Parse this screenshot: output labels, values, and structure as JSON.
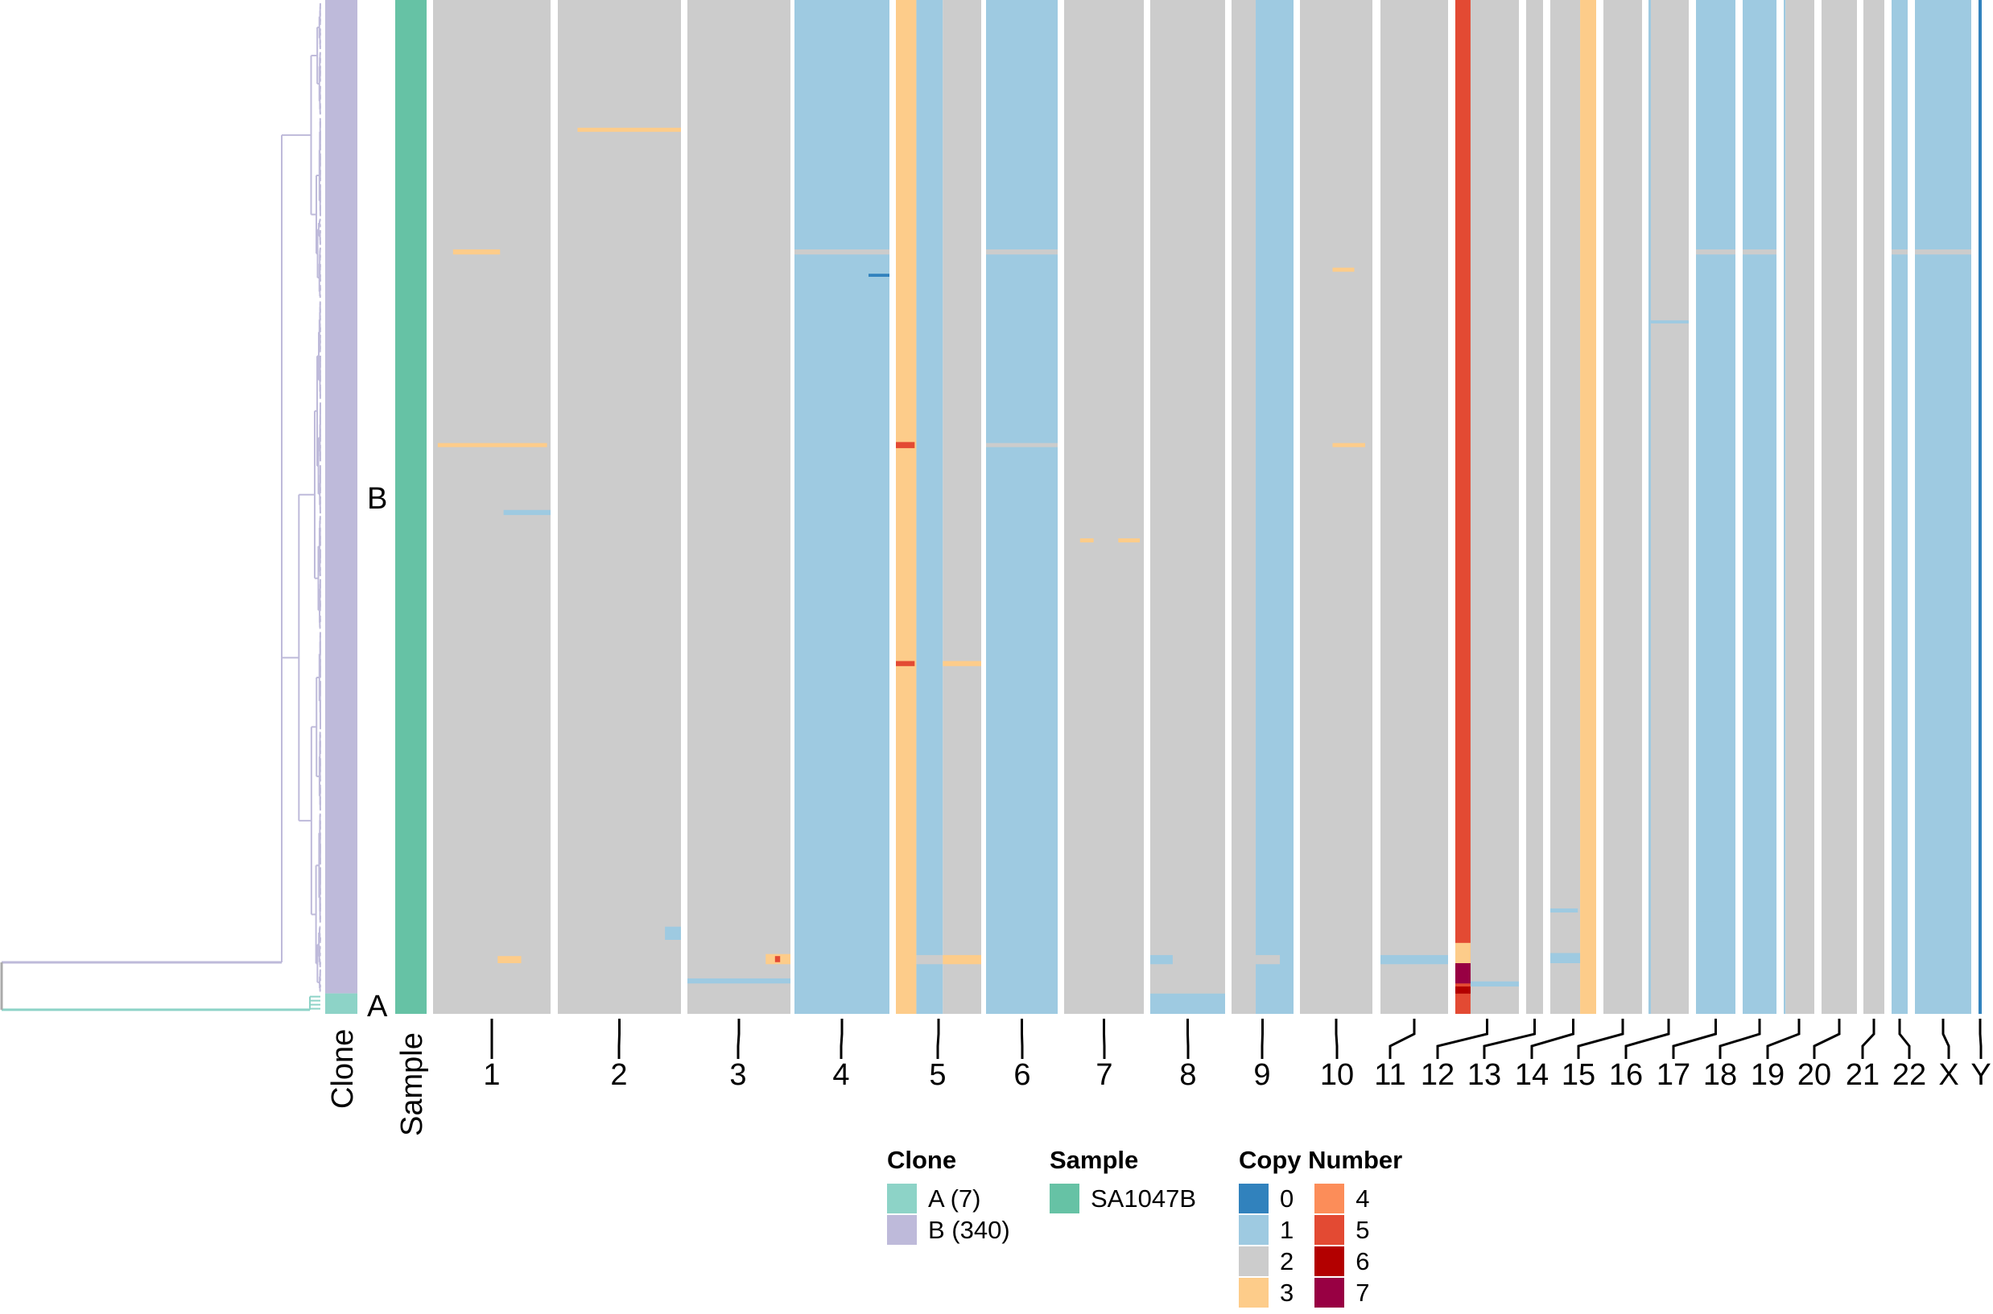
{
  "chart_data": {
    "type": "heatmap",
    "title": "",
    "row_annotations": {
      "clone_label": "Clone",
      "sample_label": "Sample"
    },
    "clones": [
      {
        "id": "A",
        "label": "A (7)",
        "cells": 7,
        "color": "#8dd3c7"
      },
      {
        "id": "B",
        "label": "B (340)",
        "cells": 340,
        "color": "#bebada"
      }
    ],
    "samples": [
      {
        "label": "SA1047B",
        "color": "#66c2a5"
      }
    ],
    "copy_number_legend_title": "Copy Number",
    "states": [
      {
        "label": "0",
        "color": "#3182bd"
      },
      {
        "label": "1",
        "color": "#9ecae1"
      },
      {
        "label": "2",
        "color": "#cccccc"
      },
      {
        "label": "3",
        "color": "#fdcc8a"
      },
      {
        "label": "4",
        "color": "#fc8d59"
      },
      {
        "label": "5",
        "color": "#e34a33"
      },
      {
        "label": "6",
        "color": "#b30000"
      },
      {
        "label": "7",
        "color": "#980043"
      }
    ],
    "chromosomes": [
      {
        "name": "1",
        "base": [
          [
            0,
            1,
            2
          ]
        ]
      },
      {
        "name": "2",
        "base": [
          [
            0,
            1,
            2
          ]
        ]
      },
      {
        "name": "3",
        "base": [
          [
            0,
            1,
            2
          ]
        ]
      },
      {
        "name": "4",
        "base": [
          [
            0,
            1,
            1
          ]
        ]
      },
      {
        "name": "5",
        "base": [
          [
            0,
            0.24,
            3
          ],
          [
            0.24,
            0.55,
            1
          ],
          [
            0.55,
            1,
            2
          ]
        ]
      },
      {
        "name": "6",
        "base": [
          [
            0,
            1,
            1
          ]
        ]
      },
      {
        "name": "7",
        "base": [
          [
            0,
            1,
            2
          ]
        ]
      },
      {
        "name": "8",
        "base": [
          [
            0,
            1,
            2
          ]
        ]
      },
      {
        "name": "9",
        "base": [
          [
            0,
            0.39,
            2
          ],
          [
            0.39,
            1,
            1
          ]
        ]
      },
      {
        "name": "10",
        "base": [
          [
            0,
            1,
            2
          ]
        ]
      },
      {
        "name": "11",
        "base": [
          [
            0,
            1,
            2
          ]
        ]
      },
      {
        "name": "12",
        "base": [
          [
            0,
            0.24,
            5
          ],
          [
            0.24,
            1,
            2
          ]
        ]
      },
      {
        "name": "13",
        "base": [
          [
            0,
            1,
            2
          ]
        ]
      },
      {
        "name": "14",
        "base": [
          [
            0,
            0.65,
            2
          ],
          [
            0.65,
            1,
            3
          ]
        ]
      },
      {
        "name": "15",
        "base": [
          [
            0,
            1,
            2
          ]
        ]
      },
      {
        "name": "16",
        "base": [
          [
            0,
            0.06,
            1
          ],
          [
            0.06,
            1,
            2
          ]
        ]
      },
      {
        "name": "17",
        "base": [
          [
            0,
            1,
            1
          ]
        ]
      },
      {
        "name": "18",
        "base": [
          [
            0,
            1,
            1
          ]
        ]
      },
      {
        "name": "19",
        "base": [
          [
            0,
            0.06,
            1
          ],
          [
            0.06,
            1,
            2
          ]
        ]
      },
      {
        "name": "20",
        "base": [
          [
            0,
            1,
            2
          ]
        ]
      },
      {
        "name": "21",
        "base": [
          [
            0,
            1,
            2
          ]
        ]
      },
      {
        "name": "22",
        "base": [
          [
            0,
            1,
            1
          ]
        ]
      },
      {
        "name": "X",
        "base": [
          [
            0,
            1,
            1
          ]
        ]
      },
      {
        "name": "Y",
        "base": [
          [
            0,
            1,
            0
          ]
        ]
      }
    ],
    "events": [
      {
        "chr": "2",
        "pos": [
          0.16,
          1
        ],
        "cells": [
          0.126,
          0.13
        ],
        "state": 3
      },
      {
        "chr": "1",
        "pos": [
          0.17,
          0.57
        ],
        "cells": [
          0.246,
          0.251
        ],
        "state": 3
      },
      {
        "chr": "4",
        "pos": [
          0,
          1
        ],
        "cells": [
          0.246,
          0.251
        ],
        "state": 2
      },
      {
        "chr": "6",
        "pos": [
          0,
          1
        ],
        "cells": [
          0.246,
          0.251
        ],
        "state": 2
      },
      {
        "chr": "17",
        "pos": [
          0,
          1
        ],
        "cells": [
          0.246,
          0.251
        ],
        "state": 2
      },
      {
        "chr": "18",
        "pos": [
          0,
          1
        ],
        "cells": [
          0.246,
          0.251
        ],
        "state": 2
      },
      {
        "chr": "22",
        "pos": [
          0,
          1
        ],
        "cells": [
          0.246,
          0.251
        ],
        "state": 2
      },
      {
        "chr": "X",
        "pos": [
          0,
          1
        ],
        "cells": [
          0.246,
          0.251
        ],
        "state": 2
      },
      {
        "chr": "4",
        "pos": [
          0.78,
          1
        ],
        "cells": [
          0.27,
          0.273
        ],
        "state": 0
      },
      {
        "chr": "10",
        "pos": [
          0.45,
          0.75
        ],
        "cells": [
          0.264,
          0.268
        ],
        "state": 3
      },
      {
        "chr": "16",
        "pos": [
          0,
          1
        ],
        "cells": [
          0.316,
          0.319
        ],
        "state": 1
      },
      {
        "chr": "1",
        "pos": [
          0.04,
          0.97
        ],
        "cells": [
          0.437,
          0.441
        ],
        "state": 3
      },
      {
        "chr": "5",
        "pos": [
          0,
          0.22
        ],
        "cells": [
          0.436,
          0.442
        ],
        "state": 5
      },
      {
        "chr": "6",
        "pos": [
          0,
          1
        ],
        "cells": [
          0.437,
          0.441
        ],
        "state": 2
      },
      {
        "chr": "10",
        "pos": [
          0.45,
          0.9
        ],
        "cells": [
          0.437,
          0.441
        ],
        "state": 3
      },
      {
        "chr": "1",
        "pos": [
          0.6,
          1
        ],
        "cells": [
          0.503,
          0.508
        ],
        "state": 1
      },
      {
        "chr": "7",
        "pos": [
          0.2,
          0.37
        ],
        "cells": [
          0.531,
          0.535
        ],
        "state": 3
      },
      {
        "chr": "7",
        "pos": [
          0.68,
          0.95
        ],
        "cells": [
          0.531,
          0.535
        ],
        "state": 3
      },
      {
        "chr": "5",
        "pos": [
          0,
          0.22
        ],
        "cells": [
          0.652,
          0.657
        ],
        "state": 5
      },
      {
        "chr": "5",
        "pos": [
          0.55,
          1
        ],
        "cells": [
          0.652,
          0.657
        ],
        "state": 3
      },
      {
        "chr": "2",
        "pos": [
          0.87,
          1
        ],
        "cells": [
          0.914,
          0.927
        ],
        "state": 1
      },
      {
        "chr": "14",
        "pos": [
          0,
          0.6
        ],
        "cells": [
          0.896,
          0.9
        ],
        "state": 1
      },
      {
        "chr": "17",
        "pos": [
          0,
          0.6
        ],
        "cells": [
          0.909,
          0.915
        ],
        "state": 1
      },
      {
        "chr": "1",
        "pos": [
          0.55,
          0.75
        ],
        "cells": [
          0.943,
          0.95
        ],
        "state": 3
      },
      {
        "chr": "3",
        "pos": [
          0.76,
          1
        ],
        "cells": [
          0.941,
          0.951
        ],
        "state": 3
      },
      {
        "chr": "3",
        "pos": [
          0.85,
          0.9
        ],
        "cells": [
          0.943,
          0.949
        ],
        "state": 5
      },
      {
        "chr": "5",
        "pos": [
          0.24,
          0.55
        ],
        "cells": [
          0.942,
          0.951
        ],
        "state": 2
      },
      {
        "chr": "5",
        "pos": [
          0.55,
          1
        ],
        "cells": [
          0.942,
          0.951
        ],
        "state": 3
      },
      {
        "chr": "8",
        "pos": [
          0,
          0.3
        ],
        "cells": [
          0.942,
          0.951
        ],
        "state": 1
      },
      {
        "chr": "9",
        "pos": [
          0.39,
          0.78
        ],
        "cells": [
          0.942,
          0.951
        ],
        "state": 2
      },
      {
        "chr": "11",
        "pos": [
          0,
          1
        ],
        "cells": [
          0.942,
          0.951
        ],
        "state": 1
      },
      {
        "chr": "12",
        "pos": [
          0,
          0.24
        ],
        "cells": [
          0.93,
          0.96
        ],
        "state": 3
      },
      {
        "chr": "12",
        "pos": [
          0,
          0.24
        ],
        "cells": [
          0.95,
          0.97
        ],
        "state": 7
      },
      {
        "chr": "12",
        "pos": [
          0,
          0.24
        ],
        "cells": [
          0.973,
          0.98
        ],
        "state": 6
      },
      {
        "chr": "14",
        "pos": [
          0,
          0.65
        ],
        "cells": [
          0.94,
          0.95
        ],
        "state": 1
      },
      {
        "chr": "3",
        "pos": [
          0,
          1
        ],
        "cells": [
          0.965,
          0.97
        ],
        "state": 1
      },
      {
        "chr": "12",
        "pos": [
          0.24,
          1
        ],
        "cells": [
          0.968,
          0.973
        ],
        "state": 1
      },
      {
        "chr": "8",
        "pos": [
          0,
          1
        ],
        "cells": [
          0.98,
          1
        ],
        "state": 1
      }
    ],
    "ticks_mode": "one label per chromosome"
  }
}
